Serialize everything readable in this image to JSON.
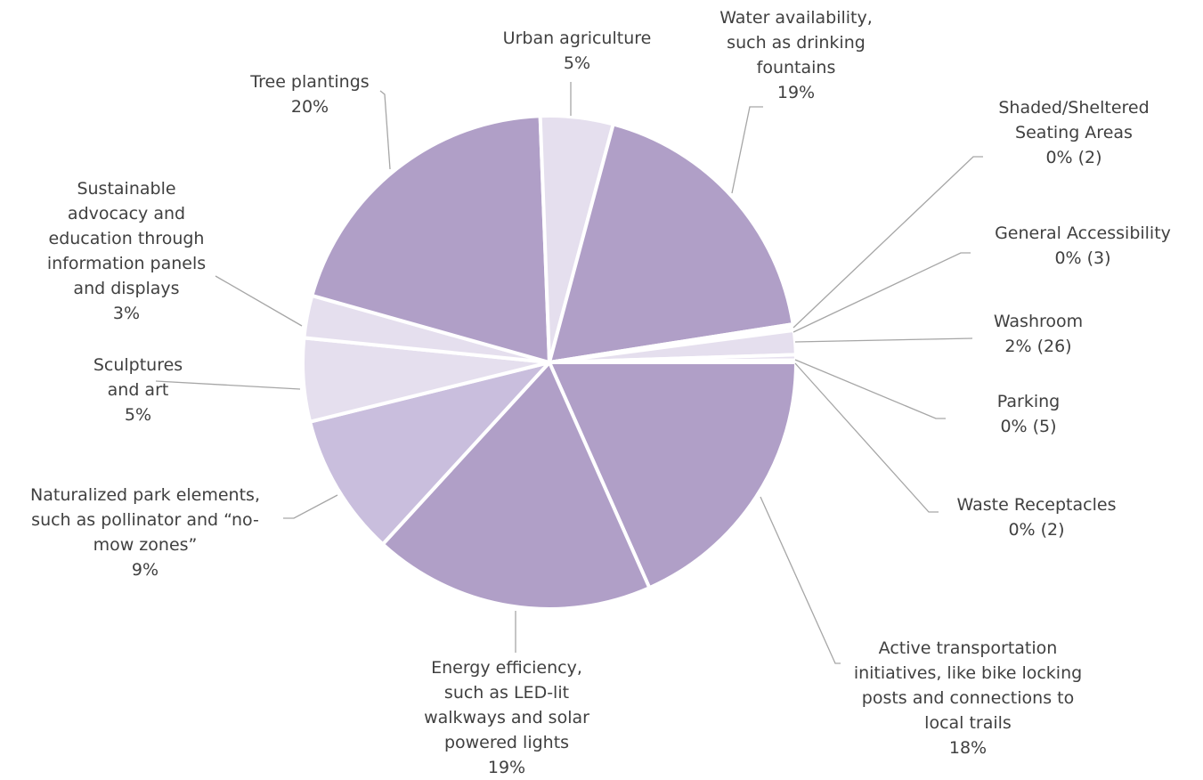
{
  "chart_data": {
    "type": "pie",
    "slices": [
      {
        "name": "Active transportation initiatives, like bike locking posts and connections to local trails",
        "percent_label": "18%",
        "value": 18.5,
        "color": "#b09fc7"
      },
      {
        "name": "Energy efficiency, such as LED-lit walkways and solar powered lights",
        "percent_label": "19%",
        "value": 18.6,
        "color": "#b09fc7"
      },
      {
        "name": "Naturalized park elements, such as pollinator and “no-mow zones”",
        "percent_label": "9%",
        "value": 9.4,
        "color": "#c9bedd"
      },
      {
        "name": "Sculptures and art",
        "percent_label": "5%",
        "value": 5.5,
        "color": "#e5dfee"
      },
      {
        "name": "Sustainable advocacy and education through information panels and displays",
        "percent_label": "3%",
        "value": 2.8,
        "color": "#e5dfee"
      },
      {
        "name": "Tree plantings",
        "percent_label": "20%",
        "value": 20.2,
        "color": "#b09fc7"
      },
      {
        "name": "Urban agriculture",
        "percent_label": "5%",
        "value": 4.8,
        "color": "#e5dfee"
      },
      {
        "name": "Water availability, such as drinking fountains",
        "percent_label": "19%",
        "value": 18.5,
        "color": "#b09fc7"
      },
      {
        "name": "Shaded/Sheltered Seating Areas",
        "percent_label": "0% (2)",
        "value": 0.15,
        "color": "#e5dfee"
      },
      {
        "name": "General Accessibility",
        "percent_label": "0% (3)",
        "value": 0.25,
        "color": "#e5dfee"
      },
      {
        "name": "Washroom",
        "percent_label": "2% (26)",
        "value": 1.6,
        "color": "#e5dfee"
      },
      {
        "name": "Parking",
        "percent_label": "0% (5)",
        "value": 0.35,
        "color": "#e5dfee"
      },
      {
        "name": "Waste Receptacles",
        "percent_label": "0% (2)",
        "value": 0.15,
        "color": "#e5dfee"
      }
    ],
    "start_direction": "east",
    "direction": "clockwise",
    "legend": "none",
    "labels": {
      "active": {
        "lines": [
          "Active transportation",
          "initiatives, like bike locking",
          "posts and connections to",
          "local trails",
          "18%"
        ]
      },
      "energy": {
        "lines": [
          "Energy efficiency,",
          "such as LED-lit",
          "walkways and solar",
          "powered lights",
          "19%"
        ]
      },
      "natural": {
        "lines": [
          "Naturalized park elements,",
          "such as pollinator and “no-",
          "mow zones”",
          "9%"
        ]
      },
      "sculpt": {
        "lines": [
          "Sculptures",
          "and art",
          "5%"
        ]
      },
      "advocacy": {
        "lines": [
          "Sustainable",
          "advocacy and",
          "education through",
          "information panels",
          "and displays",
          "3%"
        ]
      },
      "tree": {
        "lines": [
          "Tree plantings",
          "20%"
        ]
      },
      "urban": {
        "lines": [
          "Urban agriculture",
          "5%"
        ]
      },
      "water": {
        "lines": [
          "Water availability,",
          "such as drinking",
          "fountains",
          "19%"
        ]
      },
      "shaded": {
        "lines": [
          "Shaded/Sheltered",
          "Seating Areas",
          "0% (2)"
        ]
      },
      "access": {
        "lines": [
          "General Accessibility",
          "0% (3)"
        ]
      },
      "washroom": {
        "lines": [
          "Washroom",
          "2% (26)"
        ]
      },
      "parking": {
        "lines": [
          "Parking",
          "0% (5)"
        ]
      },
      "waste": {
        "lines": [
          "Waste Receptacles",
          "0% (2)"
        ]
      }
    }
  }
}
